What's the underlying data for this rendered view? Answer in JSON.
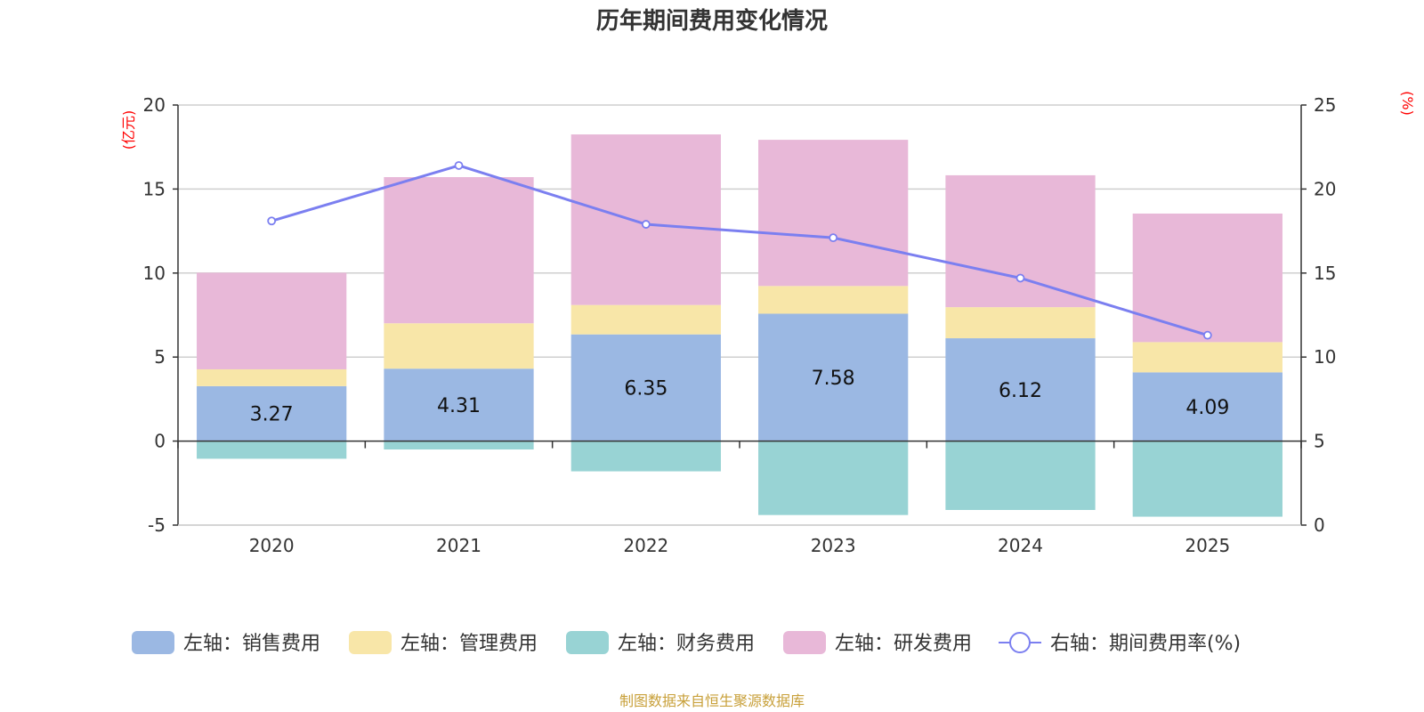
{
  "chart_data": {
    "type": "bar",
    "title": "历年期间费用变化情况",
    "categories": [
      "2020",
      "2021",
      "2022",
      "2023",
      "2024",
      "2025"
    ],
    "left_axis": {
      "unit": "(亿元)",
      "ylim": [
        -5,
        20
      ],
      "ticks": [
        -5,
        0,
        5,
        10,
        15,
        20
      ]
    },
    "right_axis": {
      "unit": "(%)",
      "ylim": [
        0,
        25
      ],
      "ticks": [
        0,
        5,
        10,
        15,
        20,
        25
      ]
    },
    "series": [
      {
        "name": "左轴：销售费用",
        "kind": "bar",
        "color": "#9bb8e3",
        "values": [
          3.27,
          4.31,
          6.35,
          7.58,
          6.12,
          4.09
        ],
        "show_labels": true
      },
      {
        "name": "左轴：管理费用",
        "kind": "bar",
        "color": "#f8e6a8",
        "values": [
          1.0,
          2.7,
          1.75,
          1.65,
          1.85,
          1.8
        ]
      },
      {
        "name": "左轴：财务费用",
        "kind": "bar",
        "color": "#98d3d4",
        "values": [
          -1.05,
          -0.5,
          -1.8,
          -4.4,
          -4.1,
          -4.5
        ]
      },
      {
        "name": "左轴：研发费用",
        "kind": "bar",
        "color": "#e8b8d8",
        "values": [
          5.75,
          8.7,
          10.15,
          8.7,
          7.85,
          7.65
        ]
      },
      {
        "name": "右轴：期间费用率(%)",
        "kind": "line",
        "color": "#7b7ff0",
        "values": [
          18.1,
          21.4,
          17.9,
          17.1,
          14.7,
          11.3
        ]
      }
    ],
    "source": "制图数据来自恒生聚源数据库"
  }
}
